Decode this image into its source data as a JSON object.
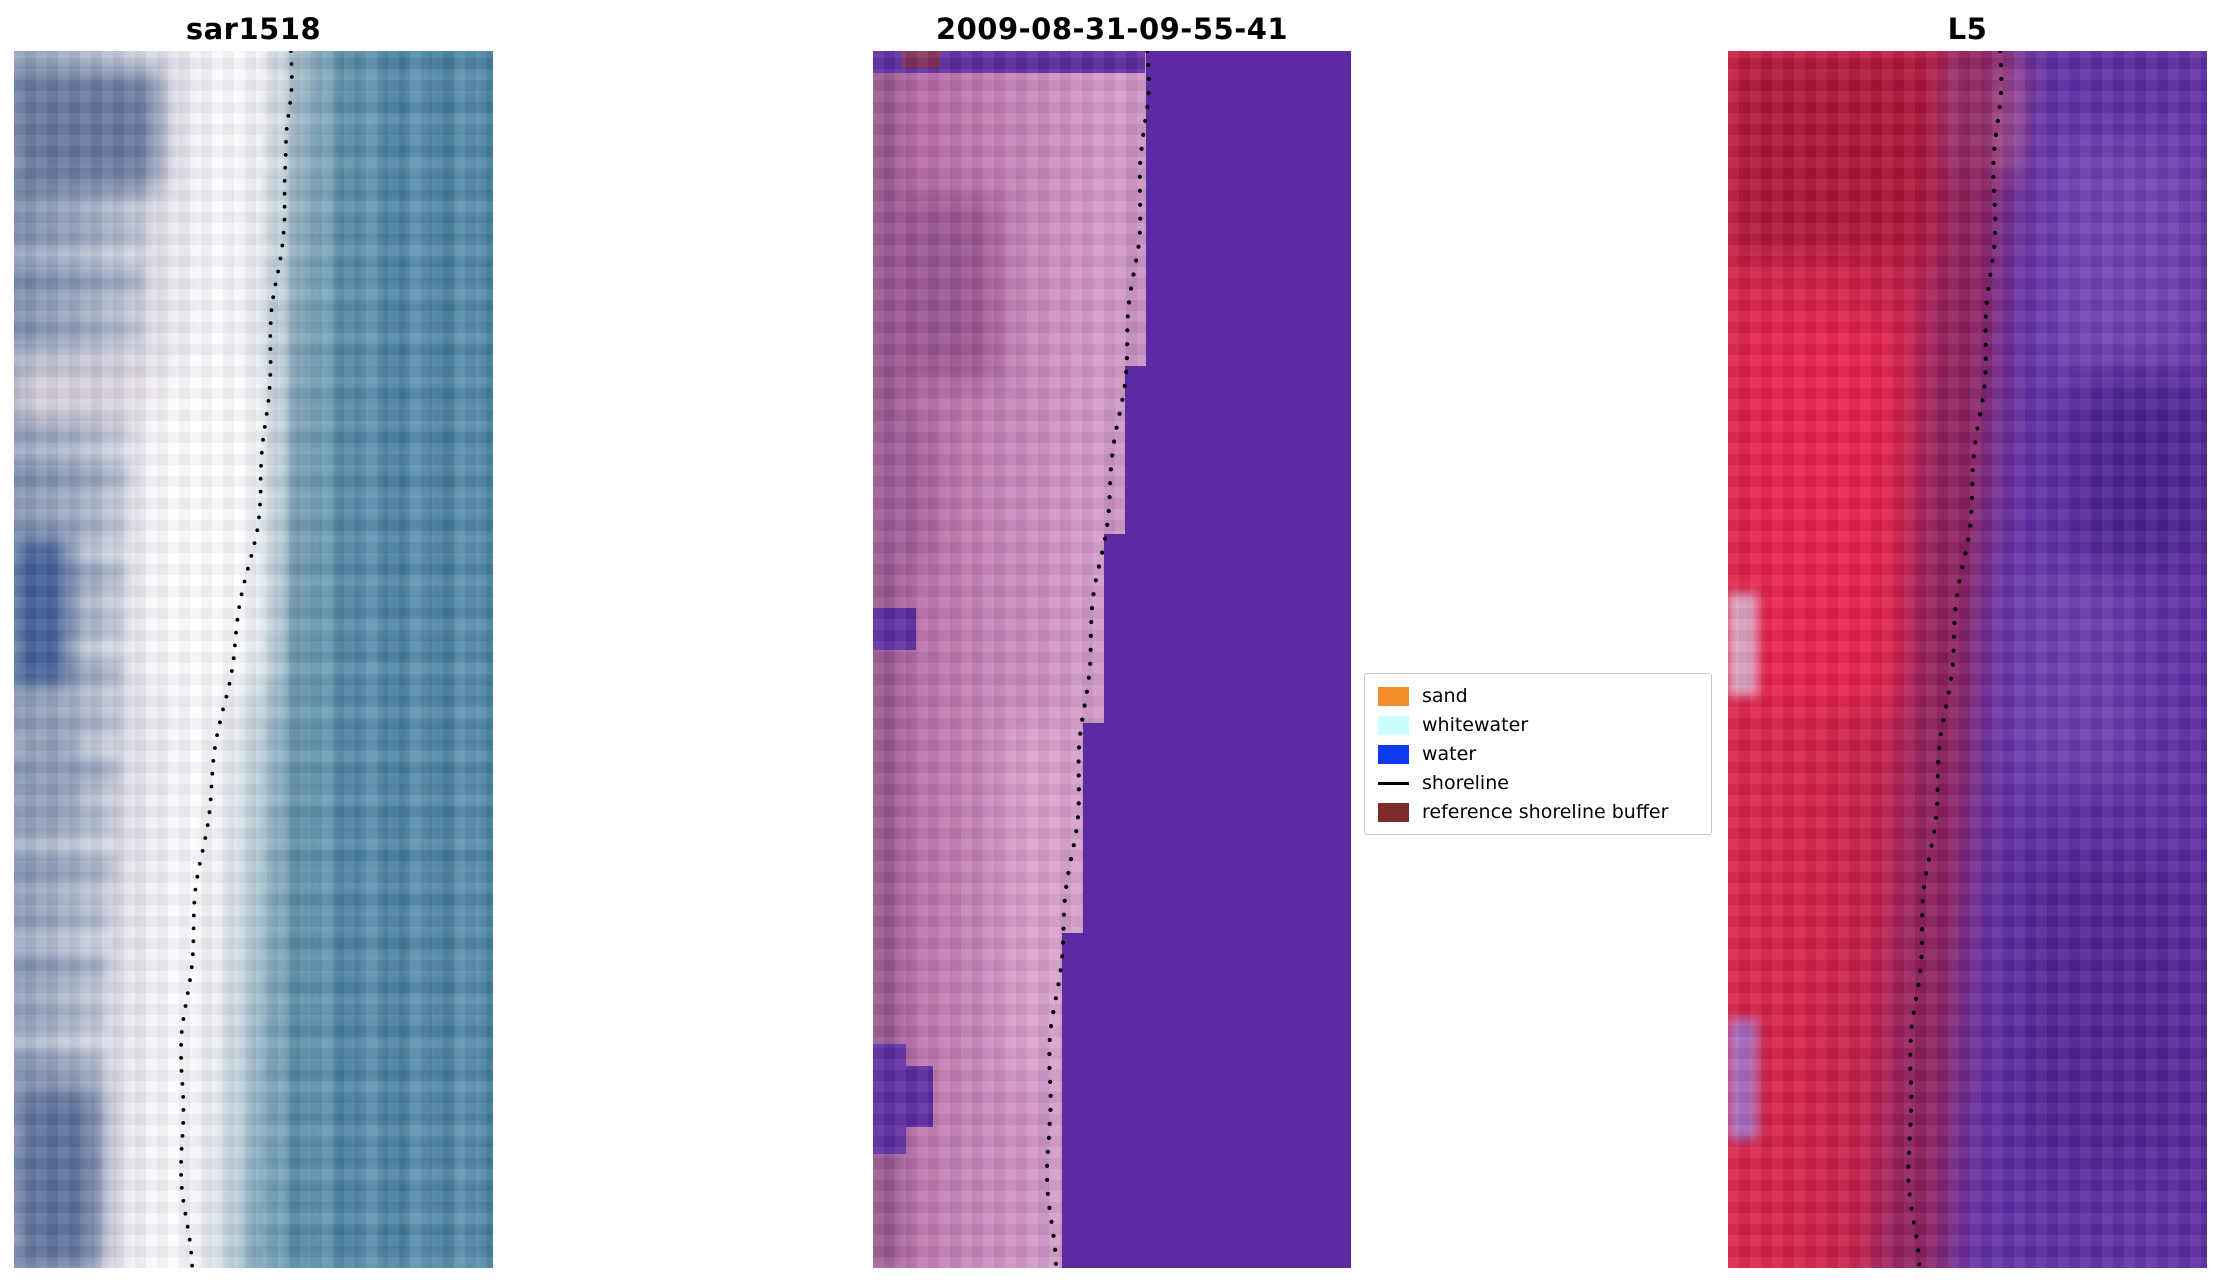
{
  "figure": {
    "kind": "matplotlib-figure",
    "background": "#ffffff"
  },
  "legend": {
    "position": "center, between second and third panels",
    "items": [
      {
        "label": "sand",
        "color": "#f28c28",
        "swatch": "patch"
      },
      {
        "label": "whitewater",
        "color": "#ccffff",
        "swatch": "patch"
      },
      {
        "label": "water",
        "color": "#1139ee",
        "swatch": "patch"
      },
      {
        "label": "shoreline",
        "color": "#000000",
        "swatch": "line"
      },
      {
        "label": "reference shoreline buffer",
        "color": "#7e2b2b",
        "swatch": "patch"
      }
    ]
  },
  "colors": {
    "background": "#ffffff",
    "purple_water": "#5c2ba1",
    "pink_land": "#bd6ba6",
    "red_land": "#d01f42",
    "teal_water": "#4d8cab",
    "sar_white_band": "#f8f6fa",
    "sar_slate_land": "#8b9cb8",
    "shoreline_dot": "#000000"
  },
  "chart_data": [
    {
      "type": "scatter",
      "title": "sar1518",
      "description": "SAR backscatter image: grey-blue land (left), bright whitewater band (centre), teal water (right); dotted detected shoreline",
      "axes": "image panel, no ticks; shoreline points normalised to panel extent, y increases downward",
      "series": [
        {
          "name": "shoreline",
          "points": [
            [
              0.578,
              0.0
            ],
            [
              0.575,
              0.03
            ],
            [
              0.57,
              0.06
            ],
            [
              0.572,
              0.09
            ],
            [
              0.565,
              0.12
            ],
            [
              0.558,
              0.15
            ],
            [
              0.552,
              0.18
            ],
            [
              0.543,
              0.21
            ],
            [
              0.535,
              0.24
            ],
            [
              0.53,
              0.27
            ],
            [
              0.527,
              0.3
            ],
            [
              0.522,
              0.33
            ],
            [
              0.515,
              0.36
            ],
            [
              0.505,
              0.39
            ],
            [
              0.492,
              0.42
            ],
            [
              0.478,
              0.45
            ],
            [
              0.463,
              0.48
            ],
            [
              0.45,
              0.51
            ],
            [
              0.437,
              0.54
            ],
            [
              0.425,
              0.57
            ],
            [
              0.413,
              0.6
            ],
            [
              0.402,
              0.63
            ],
            [
              0.392,
              0.66
            ],
            [
              0.383,
              0.69
            ],
            [
              0.375,
              0.72
            ],
            [
              0.367,
              0.75
            ],
            [
              0.36,
              0.78
            ],
            [
              0.354,
              0.81
            ],
            [
              0.35,
              0.84
            ],
            [
              0.349,
              0.87
            ],
            [
              0.35,
              0.9
            ],
            [
              0.354,
              0.93
            ],
            [
              0.36,
              0.96
            ],
            [
              0.368,
              1.0
            ]
          ]
        }
      ]
    },
    {
      "type": "scatter",
      "title": "2009-08-31-09-55-41",
      "description": "classified image: pink land (left), solid purple water (right) with stepped pixel boundary; dotted shoreline along boundary",
      "axes": "image panel, no ticks; shoreline points normalised to panel extent, y increases downward",
      "series": [
        {
          "name": "shoreline",
          "points": [
            [
              0.58,
              0.0
            ],
            [
              0.578,
              0.04
            ],
            [
              0.572,
              0.08
            ],
            [
              0.565,
              0.12
            ],
            [
              0.558,
              0.16
            ],
            [
              0.548,
              0.2
            ],
            [
              0.538,
              0.24
            ],
            [
              0.527,
              0.28
            ],
            [
              0.515,
              0.32
            ],
            [
              0.502,
              0.36
            ],
            [
              0.488,
              0.4
            ],
            [
              0.474,
              0.44
            ],
            [
              0.462,
              0.48
            ],
            [
              0.452,
              0.52
            ],
            [
              0.444,
              0.56
            ],
            [
              0.437,
              0.6
            ],
            [
              0.428,
              0.64
            ],
            [
              0.417,
              0.68
            ],
            [
              0.405,
              0.72
            ],
            [
              0.393,
              0.76
            ],
            [
              0.383,
              0.8
            ],
            [
              0.376,
              0.84
            ],
            [
              0.372,
              0.88
            ],
            [
              0.374,
              0.92
            ],
            [
              0.379,
              0.96
            ],
            [
              0.385,
              1.0
            ]
          ]
        }
      ]
    },
    {
      "type": "scatter",
      "title": "L5",
      "description": "satellite false-colour image: red land (left), mottled purple water (right); dotted shoreline along boundary",
      "axes": "image panel, no ticks; shoreline points normalised to panel extent, y increases downward",
      "series": [
        {
          "name": "shoreline",
          "points": [
            [
              0.568,
              0.0
            ],
            [
              0.565,
              0.04
            ],
            [
              0.56,
              0.08
            ],
            [
              0.556,
              0.12
            ],
            [
              0.552,
              0.16
            ],
            [
              0.546,
              0.2
            ],
            [
              0.538,
              0.24
            ],
            [
              0.53,
              0.28
            ],
            [
              0.521,
              0.32
            ],
            [
              0.51,
              0.36
            ],
            [
              0.498,
              0.4
            ],
            [
              0.485,
              0.44
            ],
            [
              0.472,
              0.48
            ],
            [
              0.46,
              0.52
            ],
            [
              0.449,
              0.56
            ],
            [
              0.438,
              0.6
            ],
            [
              0.427,
              0.64
            ],
            [
              0.416,
              0.68
            ],
            [
              0.405,
              0.72
            ],
            [
              0.396,
              0.76
            ],
            [
              0.388,
              0.8
            ],
            [
              0.381,
              0.84
            ],
            [
              0.377,
              0.88
            ],
            [
              0.38,
              0.92
            ],
            [
              0.387,
              0.96
            ],
            [
              0.396,
              1.0
            ]
          ]
        }
      ]
    }
  ]
}
